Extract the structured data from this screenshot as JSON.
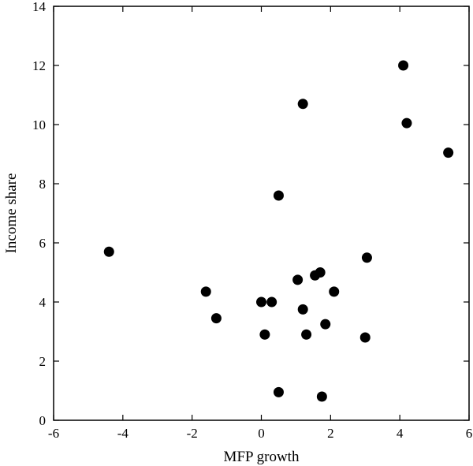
{
  "chart_data": {
    "type": "scatter",
    "title": "",
    "xlabel": "MFP growth",
    "ylabel": "Income share",
    "xlim": [
      -6,
      6
    ],
    "ylim": [
      0,
      14
    ],
    "xticks": [
      -6,
      -4,
      -2,
      0,
      2,
      4,
      6
    ],
    "yticks": [
      0,
      2,
      4,
      6,
      8,
      10,
      12,
      14
    ],
    "grid": false,
    "legend": "none",
    "marker_color": "#000000",
    "points": [
      {
        "x": -4.4,
        "y": 5.7
      },
      {
        "x": -1.6,
        "y": 4.35
      },
      {
        "x": -1.3,
        "y": 3.45
      },
      {
        "x": 0.0,
        "y": 4.0
      },
      {
        "x": 0.1,
        "y": 2.9
      },
      {
        "x": 0.3,
        "y": 4.0
      },
      {
        "x": 0.5,
        "y": 7.6
      },
      {
        "x": 0.5,
        "y": 0.95
      },
      {
        "x": 1.05,
        "y": 4.75
      },
      {
        "x": 1.2,
        "y": 10.7
      },
      {
        "x": 1.2,
        "y": 3.75
      },
      {
        "x": 1.3,
        "y": 2.9
      },
      {
        "x": 1.55,
        "y": 4.9
      },
      {
        "x": 1.7,
        "y": 5.0
      },
      {
        "x": 1.75,
        "y": 0.8
      },
      {
        "x": 1.85,
        "y": 3.25
      },
      {
        "x": 2.1,
        "y": 4.35
      },
      {
        "x": 3.0,
        "y": 2.8
      },
      {
        "x": 3.05,
        "y": 5.5
      },
      {
        "x": 4.1,
        "y": 12.0
      },
      {
        "x": 4.2,
        "y": 10.05
      },
      {
        "x": 5.4,
        "y": 9.05
      }
    ]
  }
}
